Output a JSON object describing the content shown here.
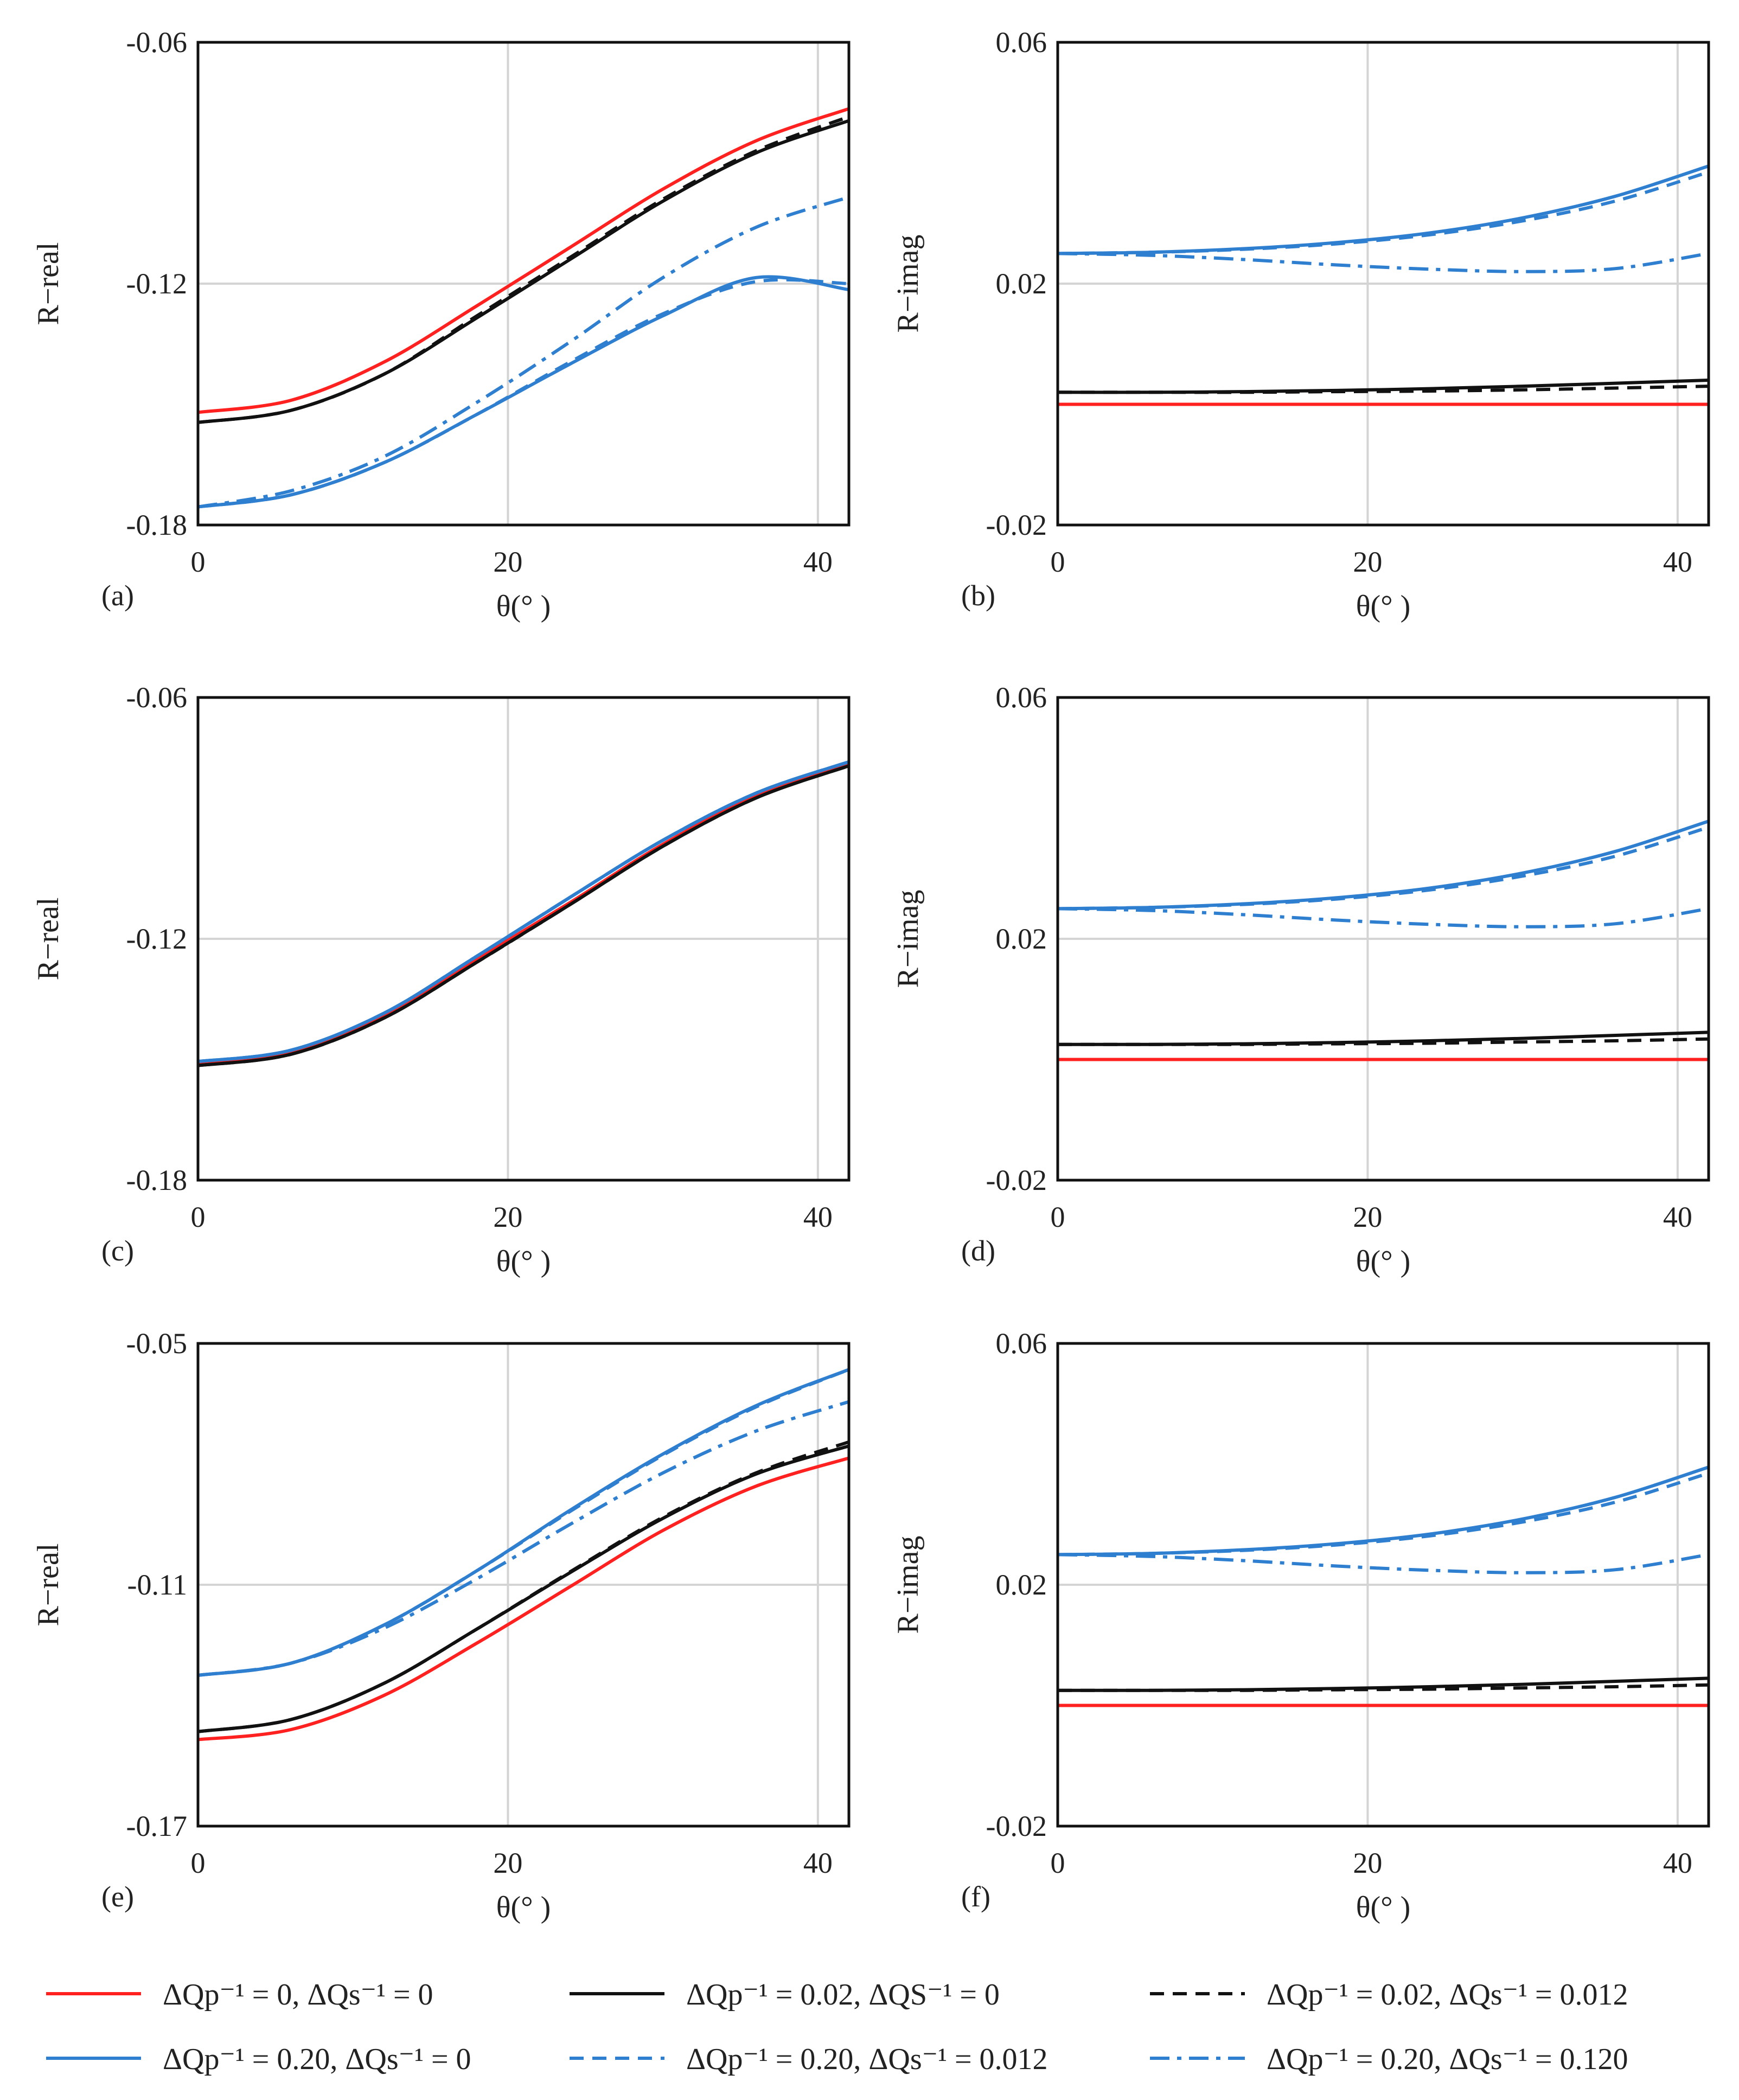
{
  "figure": {
    "legend": [
      {
        "key": "s1",
        "label": "ΔQp⁻¹ = 0,      ΔQs⁻¹ = 0"
      },
      {
        "key": "s2",
        "label": "ΔQp⁻¹ = 0.02, ΔQS⁻¹ = 0"
      },
      {
        "key": "s3",
        "label": "ΔQp⁻¹ = 0.02, ΔQs⁻¹ = 0.012"
      },
      {
        "key": "s4",
        "label": "ΔQp⁻¹ = 0.20, ΔQs⁻¹ = 0"
      },
      {
        "key": "s5",
        "label": "ΔQp⁻¹ = 0.20, ΔQs⁻¹ = 0.012"
      },
      {
        "key": "s6",
        "label": "ΔQp⁻¹ = 0.20, ΔQs⁻¹ = 0.120"
      }
    ],
    "series_styles": {
      "s1": {
        "color": "#ff2020",
        "dash": "solid"
      },
      "s2": {
        "color": "#111111",
        "dash": "solid"
      },
      "s3": {
        "color": "#111111",
        "dash": "dashed"
      },
      "s4": {
        "color": "#2f7fd0",
        "dash": "solid"
      },
      "s5": {
        "color": "#2f7fd0",
        "dash": "dashed"
      },
      "s6": {
        "color": "#2f7fd0",
        "dash": "dashdot"
      }
    },
    "gridline_color": "#d4d4d4"
  },
  "chart_data": [
    {
      "panel": "(a)",
      "type": "line",
      "xlabel": "θ(° )",
      "ylabel": "R−real",
      "xlim": [
        0,
        42
      ],
      "ylim": [
        -0.18,
        -0.06
      ],
      "xticks": [
        0,
        20,
        40
      ],
      "xtick_labels": [
        "0",
        "20",
        "40"
      ],
      "yticks": [
        -0.18,
        -0.12,
        -0.06
      ],
      "ytick_labels": [
        "-0.18",
        "-0.12",
        "-0.06"
      ],
      "x": [
        0,
        6,
        12,
        18,
        24,
        30,
        36,
        42
      ],
      "series": [
        {
          "key": "s1",
          "values": [
            -0.152,
            -0.149,
            -0.1395,
            -0.1255,
            -0.111,
            -0.0965,
            -0.0845,
            -0.0765
          ]
        },
        {
          "key": "s2",
          "values": [
            -0.1545,
            -0.1515,
            -0.1425,
            -0.1285,
            -0.114,
            -0.0995,
            -0.0875,
            -0.0795
          ]
        },
        {
          "key": "s3",
          "values": [
            -0.1545,
            -0.1515,
            -0.1425,
            -0.128,
            -0.1135,
            -0.099,
            -0.087,
            -0.0785
          ]
        },
        {
          "key": "s4",
          "values": [
            -0.1755,
            -0.1725,
            -0.1645,
            -0.1525,
            -0.14,
            -0.128,
            -0.1185,
            -0.1215
          ]
        },
        {
          "key": "s5",
          "values": [
            -0.1755,
            -0.1725,
            -0.1645,
            -0.1525,
            -0.1395,
            -0.1275,
            -0.1195,
            -0.12
          ]
        },
        {
          "key": "s6",
          "values": [
            -0.1755,
            -0.1715,
            -0.163,
            -0.1495,
            -0.1345,
            -0.1185,
            -0.106,
            -0.0985
          ]
        }
      ]
    },
    {
      "panel": "(b)",
      "type": "line",
      "xlabel": "θ(° )",
      "ylabel": "R−imag",
      "xlim": [
        0,
        42
      ],
      "ylim": [
        -0.02,
        0.06
      ],
      "xticks": [
        0,
        20,
        40
      ],
      "xtick_labels": [
        "0",
        "20",
        "40"
      ],
      "yticks": [
        -0.02,
        0.02,
        0.06
      ],
      "ytick_labels": [
        "-0.02",
        "0.02",
        "0.06"
      ],
      "x": [
        0,
        6,
        12,
        18,
        24,
        30,
        36,
        42
      ],
      "series": [
        {
          "key": "s1",
          "values": [
            0.0,
            0.0,
            0.0,
            0.0,
            0.0,
            0.0,
            0.0,
            0.0
          ]
        },
        {
          "key": "s2",
          "values": [
            0.002,
            0.002,
            0.0021,
            0.0023,
            0.0026,
            0.003,
            0.0035,
            0.004
          ]
        },
        {
          "key": "s3",
          "values": [
            0.002,
            0.002,
            0.002,
            0.0021,
            0.0022,
            0.0024,
            0.0027,
            0.003
          ]
        },
        {
          "key": "s4",
          "values": [
            0.025,
            0.0252,
            0.0258,
            0.0268,
            0.0284,
            0.0309,
            0.0345,
            0.0395
          ]
        },
        {
          "key": "s5",
          "values": [
            0.025,
            0.0252,
            0.0257,
            0.0266,
            0.0281,
            0.0304,
            0.0337,
            0.0385
          ]
        },
        {
          "key": "s6",
          "values": [
            0.025,
            0.0247,
            0.024,
            0.0231,
            0.0224,
            0.022,
            0.0225,
            0.025
          ]
        }
      ]
    },
    {
      "panel": "(c)",
      "type": "line",
      "xlabel": "θ(° )",
      "ylabel": "R−real",
      "xlim": [
        0,
        42
      ],
      "ylim": [
        -0.18,
        -0.06
      ],
      "xticks": [
        0,
        20,
        40
      ],
      "xtick_labels": [
        "0",
        "20",
        "40"
      ],
      "yticks": [
        -0.18,
        -0.12,
        -0.06
      ],
      "ytick_labels": [
        "-0.18",
        "-0.12",
        "-0.06"
      ],
      "x": [
        0,
        6,
        12,
        18,
        24,
        30,
        36,
        42
      ],
      "series": [
        {
          "key": "s1",
          "values": [
            -0.151,
            -0.148,
            -0.139,
            -0.125,
            -0.111,
            -0.0965,
            -0.0845,
            -0.0765
          ]
        },
        {
          "key": "s2",
          "values": [
            -0.1515,
            -0.1487,
            -0.1397,
            -0.1258,
            -0.1115,
            -0.097,
            -0.085,
            -0.077
          ]
        },
        {
          "key": "s3",
          "values": [
            -0.1515,
            -0.1487,
            -0.1397,
            -0.1258,
            -0.1115,
            -0.097,
            -0.085,
            -0.077
          ]
        },
        {
          "key": "s4",
          "values": [
            -0.1505,
            -0.1477,
            -0.1385,
            -0.1243,
            -0.1097,
            -0.0955,
            -0.0838,
            -0.076
          ]
        },
        {
          "key": "s5",
          "values": [
            -0.1505,
            -0.1477,
            -0.1385,
            -0.1243,
            -0.1097,
            -0.0955,
            -0.0838,
            -0.076
          ]
        },
        {
          "key": "s6",
          "values": [
            -0.1505,
            -0.1477,
            -0.1385,
            -0.1243,
            -0.1097,
            -0.0955,
            -0.0838,
            -0.076
          ]
        }
      ]
    },
    {
      "panel": "(d)",
      "type": "line",
      "xlabel": "θ(° )",
      "ylabel": "R−imag",
      "xlim": [
        0,
        42
      ],
      "ylim": [
        -0.02,
        0.06
      ],
      "xticks": [
        0,
        20,
        40
      ],
      "xtick_labels": [
        "0",
        "20",
        "40"
      ],
      "yticks": [
        -0.02,
        0.02,
        0.06
      ],
      "ytick_labels": [
        "-0.02",
        "0.02",
        "0.06"
      ],
      "x": [
        0,
        6,
        12,
        18,
        24,
        30,
        36,
        42
      ],
      "series": [
        {
          "key": "s1",
          "values": [
            0.0,
            0.0,
            0.0,
            0.0,
            0.0,
            0.0,
            0.0,
            0.0
          ]
        },
        {
          "key": "s2",
          "values": [
            0.0025,
            0.0025,
            0.0026,
            0.0028,
            0.0031,
            0.0035,
            0.004,
            0.0045
          ]
        },
        {
          "key": "s3",
          "values": [
            0.0025,
            0.0025,
            0.0025,
            0.0026,
            0.0027,
            0.0029,
            0.0031,
            0.0034
          ]
        },
        {
          "key": "s4",
          "values": [
            0.025,
            0.0252,
            0.0258,
            0.0268,
            0.0284,
            0.0309,
            0.0345,
            0.0395
          ]
        },
        {
          "key": "s5",
          "values": [
            0.025,
            0.0252,
            0.0257,
            0.0266,
            0.0281,
            0.0304,
            0.0337,
            0.0385
          ]
        },
        {
          "key": "s6",
          "values": [
            0.025,
            0.0247,
            0.024,
            0.0231,
            0.0224,
            0.022,
            0.0225,
            0.025
          ]
        }
      ]
    },
    {
      "panel": "(e)",
      "type": "line",
      "xlabel": "θ(° )",
      "ylabel": "R−real",
      "xlim": [
        0,
        42
      ],
      "ylim": [
        -0.17,
        -0.05
      ],
      "xticks": [
        0,
        20,
        40
      ],
      "xtick_labels": [
        "0",
        "20",
        "40"
      ],
      "yticks": [
        -0.17,
        -0.11,
        -0.05
      ],
      "ytick_labels": [
        "-0.17",
        "-0.11",
        "-0.05"
      ],
      "x": [
        0,
        6,
        12,
        18,
        24,
        30,
        36,
        42
      ],
      "series": [
        {
          "key": "s1",
          "values": [
            -0.1485,
            -0.146,
            -0.1375,
            -0.1245,
            -0.1105,
            -0.0965,
            -0.0855,
            -0.0785
          ]
        },
        {
          "key": "s2",
          "values": [
            -0.1465,
            -0.1435,
            -0.1345,
            -0.121,
            -0.107,
            -0.0935,
            -0.0825,
            -0.0755
          ]
        },
        {
          "key": "s3",
          "values": [
            -0.1465,
            -0.1435,
            -0.1345,
            -0.121,
            -0.1068,
            -0.0932,
            -0.0822,
            -0.0745
          ]
        },
        {
          "key": "s4",
          "values": [
            -0.1325,
            -0.1295,
            -0.12,
            -0.1065,
            -0.0915,
            -0.0775,
            -0.0655,
            -0.0565
          ]
        },
        {
          "key": "s5",
          "values": [
            -0.1325,
            -0.1295,
            -0.12,
            -0.1065,
            -0.0918,
            -0.0778,
            -0.0658,
            -0.0565
          ]
        },
        {
          "key": "s6",
          "values": [
            -0.1325,
            -0.1295,
            -0.1208,
            -0.1085,
            -0.095,
            -0.0822,
            -0.0718,
            -0.0645
          ]
        }
      ]
    },
    {
      "panel": "(f)",
      "type": "line",
      "xlabel": "θ(° )",
      "ylabel": "R−imag",
      "xlim": [
        0,
        42
      ],
      "ylim": [
        -0.02,
        0.06
      ],
      "xticks": [
        0,
        20,
        40
      ],
      "xtick_labels": [
        "0",
        "20",
        "40"
      ],
      "yticks": [
        -0.02,
        0.02,
        0.06
      ],
      "ytick_labels": [
        "-0.02",
        "0.02",
        "0.06"
      ],
      "x": [
        0,
        6,
        12,
        18,
        24,
        30,
        36,
        42
      ],
      "series": [
        {
          "key": "s1",
          "values": [
            0.0,
            0.0,
            0.0,
            0.0,
            0.0,
            0.0,
            0.0,
            0.0
          ]
        },
        {
          "key": "s2",
          "values": [
            0.0025,
            0.0025,
            0.0026,
            0.0028,
            0.0031,
            0.0035,
            0.004,
            0.0045
          ]
        },
        {
          "key": "s3",
          "values": [
            0.0025,
            0.0025,
            0.0025,
            0.0026,
            0.0027,
            0.0029,
            0.0031,
            0.0034
          ]
        },
        {
          "key": "s4",
          "values": [
            0.025,
            0.0252,
            0.0258,
            0.0268,
            0.0284,
            0.0309,
            0.0345,
            0.0395
          ]
        },
        {
          "key": "s5",
          "values": [
            0.025,
            0.0252,
            0.0257,
            0.0266,
            0.0281,
            0.0304,
            0.0337,
            0.0385
          ]
        },
        {
          "key": "s6",
          "values": [
            0.025,
            0.0247,
            0.024,
            0.0231,
            0.0224,
            0.022,
            0.0225,
            0.025
          ]
        }
      ]
    }
  ]
}
